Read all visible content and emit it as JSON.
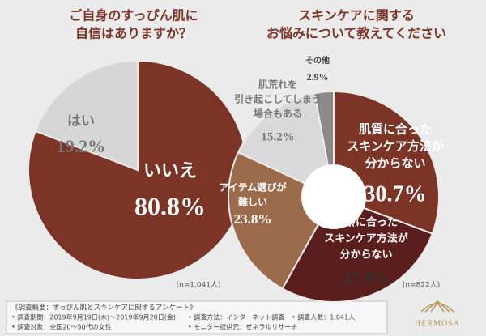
{
  "chart_data": [
    {
      "type": "pie",
      "title": [
        "ご自身のすっぴん肌に",
        "自信はありますか？"
      ],
      "categories": [
        [
          "いいえ"
        ],
        [
          "はい"
        ]
      ],
      "values": [
        80.8,
        19.2
      ],
      "value_labels": [
        "80.8%",
        "19.2%"
      ],
      "colors": [
        "#7b3426",
        "#d6d6d6"
      ],
      "note": "(n=1,041人)"
    },
    {
      "type": "donut",
      "title": [
        "スキンケアに関する",
        "お悩みについて教えてください"
      ],
      "categories": [
        [
          "肌質に合った",
          "スキンケア方法が",
          "分からない"
        ],
        [
          "年齢に合った",
          "スキンケア方法が",
          "分からない"
        ],
        [
          "アイテム選びが",
          "難しい"
        ],
        [
          "肌荒れを",
          "引き起こしてしまう",
          "場合もある"
        ],
        [
          "その他"
        ]
      ],
      "values": [
        30.7,
        27.4,
        23.8,
        15.2,
        2.9
      ],
      "value_labels": [
        "30.7%",
        "27.4%",
        "23.8%",
        "15.2%",
        "2.9%"
      ],
      "colors": [
        "#7b3426",
        "#5a1f1d",
        "#9b6b4c",
        "#dadada",
        "#8a8a8a"
      ],
      "note": "(n=822人)"
    }
  ],
  "footer": {
    "heading": "《調査概要：すっぴん肌とスキンケアに関するアンケート》",
    "items": [
      "• 調査期間：2019年9月19日(木)～2019年9月20日(金)",
      "• 調査方法：インターネット調査",
      "• 調査人数：1,041人",
      "• 調査対象：全国20～50代の女性",
      "• モニター提供元：ゼネラルリサーチ"
    ],
    "logo": "HERMOSA"
  }
}
